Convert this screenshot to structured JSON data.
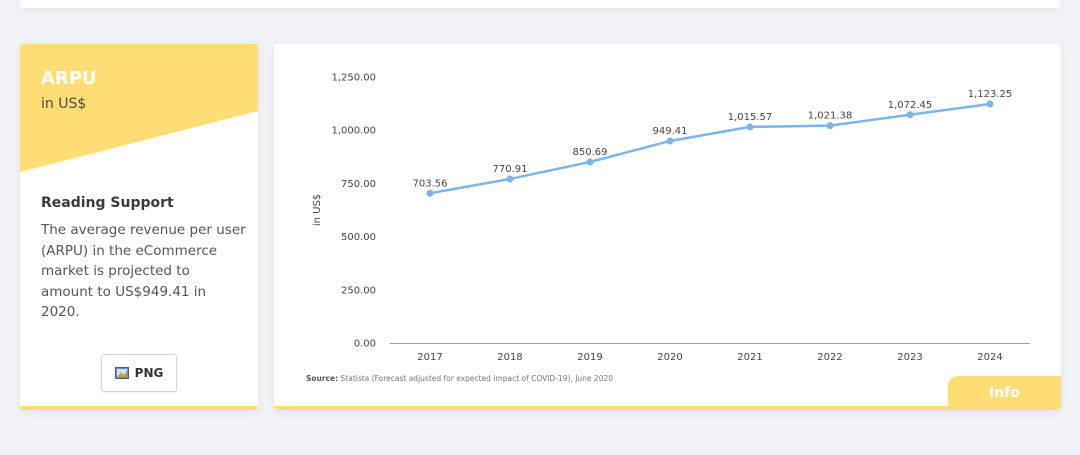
{
  "metric": {
    "title": "ARPU",
    "unit": "in US$"
  },
  "reading_support": {
    "heading": "Reading Support",
    "text": "The average revenue per user (ARPU) in the eCommerce market is projected to amount to US$949.41 in 2020."
  },
  "download": {
    "label": "PNG",
    "icon": "image-icon"
  },
  "source": {
    "label": "Source:",
    "text": "Statista (Forecast adjusted for expected impact of COVID-19), June 2020"
  },
  "info": {
    "label": "Info"
  },
  "colors": {
    "accent": "#ffdd75",
    "line": "#7cb5e6",
    "point": "#7cb5e6"
  },
  "chart_data": {
    "type": "line",
    "x": [
      "2017",
      "2018",
      "2019",
      "2020",
      "2021",
      "2022",
      "2023",
      "2024"
    ],
    "series": [
      {
        "values": [
          703.56,
          770.91,
          850.69,
          949.41,
          1015.57,
          1021.38,
          1072.45,
          1123.25
        ],
        "labels": [
          "703.56",
          "770.91",
          "850.69",
          "949.41",
          "1,015.57",
          "1,021.38",
          "1,072.45",
          "1,123.25"
        ]
      }
    ],
    "ylabel": "in US$",
    "ylim": [
      0,
      1250
    ],
    "yticks": [
      0,
      250,
      500,
      750,
      1000,
      1250
    ],
    "ytick_labels": [
      "0.00",
      "250.00",
      "500.00",
      "750.00",
      "1,000.00",
      "1,250.00"
    ],
    "grid": false,
    "legend": "none"
  }
}
